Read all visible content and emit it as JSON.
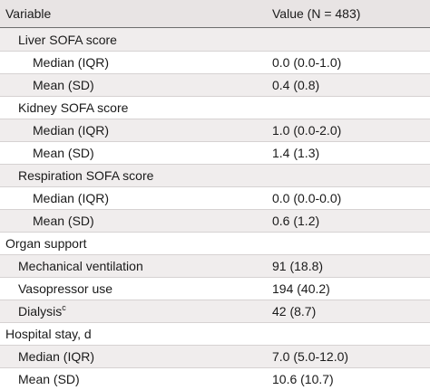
{
  "table": {
    "header": {
      "variable": "Variable",
      "value": "Value (N = 483)"
    },
    "rows": [
      {
        "label": "Liver SOFA score",
        "value": "",
        "level": 1
      },
      {
        "label": "Median (IQR)",
        "value": "0.0 (0.0-1.0)",
        "level": 2
      },
      {
        "label": "Mean (SD)",
        "value": "0.4 (0.8)",
        "level": 2
      },
      {
        "label": "Kidney SOFA score",
        "value": "",
        "level": 1
      },
      {
        "label": "Median (IQR)",
        "value": "1.0 (0.0-2.0)",
        "level": 2
      },
      {
        "label": "Mean (SD)",
        "value": "1.4 (1.3)",
        "level": 2
      },
      {
        "label": "Respiration SOFA score",
        "value": "",
        "level": 1
      },
      {
        "label": "Median (IQR)",
        "value": "0.0 (0.0-0.0)",
        "level": 2
      },
      {
        "label": "Mean (SD)",
        "value": "0.6 (1.2)",
        "level": 2
      },
      {
        "label": "Organ support",
        "value": "",
        "level": 0
      },
      {
        "label": "Mechanical ventilation",
        "value": "91 (18.8)",
        "level": 1
      },
      {
        "label": "Vasopressor use",
        "value": "194 (40.2)",
        "level": 1
      },
      {
        "label": "Dialysis",
        "sup": "c",
        "value": "42 (8.7)",
        "level": 1
      },
      {
        "label": "Hospital stay, d",
        "value": "",
        "level": 0
      },
      {
        "label": "Median (IQR)",
        "value": "7.0 (5.0-12.0)",
        "level": 1
      },
      {
        "label": "Mean (SD)",
        "value": "10.6 (10.7)",
        "level": 1
      }
    ]
  }
}
